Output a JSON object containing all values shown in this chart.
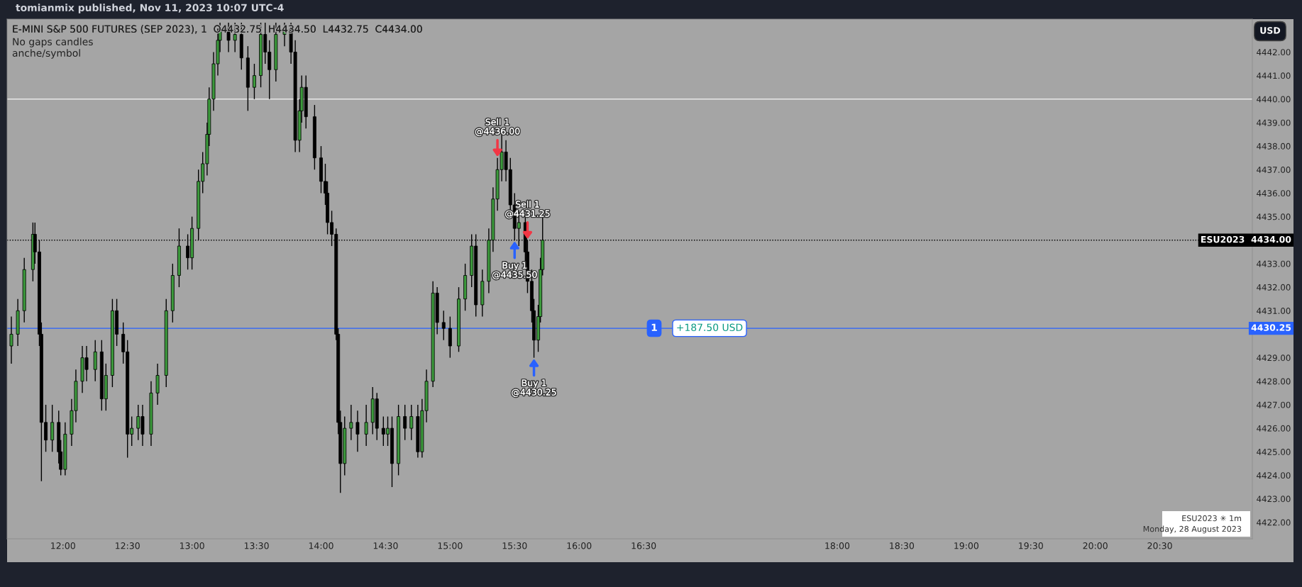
{
  "chart_data": {
    "type": "candlestick",
    "title": "E-MINI S&P 500 FUTURES (SEP 2023), 1  O4432.75  H4434.50  L4432.75  C4434.00",
    "subtitle": "tomianmix published, Nov 11, 2023 10:07 UTC-4",
    "x": [
      11.6,
      11.65,
      11.7,
      11.767,
      11.783,
      11.817,
      11.833,
      11.867,
      11.917,
      11.967,
      11.983,
      12.017,
      12.067,
      12.1,
      12.15,
      12.183,
      12.25,
      12.3,
      12.333,
      12.383,
      12.417,
      12.467,
      12.5,
      12.533,
      12.583,
      12.617,
      12.683,
      12.733,
      12.8,
      12.85,
      12.9,
      12.967,
      13.0,
      13.05,
      13.083,
      13.117,
      13.133,
      13.167,
      13.2,
      13.217,
      13.283,
      13.333,
      13.383,
      13.433,
      13.483,
      13.533,
      13.567,
      13.6,
      13.65,
      13.717,
      13.767,
      13.8,
      13.833,
      13.85,
      13.883,
      13.95,
      14.0,
      14.033,
      14.05,
      14.083,
      14.117,
      14.133,
      14.15,
      14.183,
      14.233,
      14.283,
      14.35,
      14.4,
      14.433,
      14.483,
      14.517,
      14.55,
      14.6,
      14.65,
      14.7,
      14.75,
      14.783,
      14.817,
      14.867,
      14.9,
      14.95,
      15.0,
      15.067,
      15.117,
      15.167,
      15.2,
      15.25,
      15.3,
      15.333,
      15.367,
      15.4,
      15.433,
      15.467,
      15.5,
      15.533,
      15.583,
      15.6,
      15.633,
      15.65,
      15.683,
      15.7,
      15.717
    ],
    "ohlc": [
      [
        4429.5,
        4430.75,
        4428.75,
        4430.0
      ],
      [
        4430.0,
        4431.5,
        4429.5,
        4431.0
      ],
      [
        4431.0,
        4433.25,
        4430.5,
        4432.75
      ],
      [
        4432.75,
        4434.75,
        4432.25,
        4434.25
      ],
      [
        4434.25,
        4434.75,
        4433.0,
        4433.5
      ],
      [
        4433.5,
        4434.0,
        4429.5,
        4430.0
      ],
      [
        4430.0,
        4430.5,
        4423.75,
        4426.25
      ],
      [
        4426.25,
        4427.0,
        4425.0,
        4425.5
      ],
      [
        4425.5,
        4427.0,
        4425.0,
        4426.25
      ],
      [
        4426.25,
        4426.75,
        4424.5,
        4425.0
      ],
      [
        4425.0,
        4425.5,
        4424.0,
        4424.25
      ],
      [
        4424.25,
        4426.25,
        4424.0,
        4425.75
      ],
      [
        4425.75,
        4427.25,
        4425.25,
        4426.75
      ],
      [
        4426.75,
        4428.5,
        4426.25,
        4428.0
      ],
      [
        4428.0,
        4429.5,
        4427.5,
        4429.0
      ],
      [
        4429.0,
        4429.5,
        4428.0,
        4428.5
      ],
      [
        4428.5,
        4429.75,
        4428.0,
        4429.25
      ],
      [
        4429.25,
        4429.75,
        4426.75,
        4427.25
      ],
      [
        4427.25,
        4428.75,
        4426.75,
        4428.25
      ],
      [
        4428.25,
        4431.5,
        4427.75,
        4431.0
      ],
      [
        4431.0,
        4431.5,
        4429.5,
        4430.0
      ],
      [
        4430.0,
        4430.5,
        4428.75,
        4429.25
      ],
      [
        4429.25,
        4429.75,
        4424.75,
        4425.75
      ],
      [
        4425.75,
        4426.5,
        4425.25,
        4426.0
      ],
      [
        4426.0,
        4427.0,
        4425.5,
        4426.5
      ],
      [
        4426.5,
        4427.0,
        4425.25,
        4425.75
      ],
      [
        4425.75,
        4428.0,
        4425.25,
        4427.5
      ],
      [
        4427.5,
        4428.75,
        4427.0,
        4428.25
      ],
      [
        4428.25,
        4431.5,
        4427.75,
        4431.0
      ],
      [
        4431.0,
        4433.0,
        4430.5,
        4432.5
      ],
      [
        4432.5,
        4434.5,
        4432.0,
        4433.75
      ],
      [
        4433.75,
        4434.25,
        4432.75,
        4433.25
      ],
      [
        4433.25,
        4435.0,
        4432.75,
        4434.5
      ],
      [
        4434.5,
        4437.0,
        4434.0,
        4436.5
      ],
      [
        4436.5,
        4437.75,
        4436.0,
        4437.25
      ],
      [
        4437.25,
        4439.0,
        4436.75,
        4438.5
      ],
      [
        4438.5,
        4440.5,
        4438.0,
        4440.0
      ],
      [
        4440.0,
        4442.0,
        4439.5,
        4441.5
      ],
      [
        4441.5,
        4443.0,
        4441.0,
        4442.5
      ],
      [
        4442.5,
        4443.25,
        4442.0,
        4443.0
      ],
      [
        4443.0,
        4443.25,
        4442.0,
        4442.5
      ],
      [
        4442.5,
        4443.25,
        4442.0,
        4442.75
      ],
      [
        4442.75,
        4443.25,
        4441.25,
        4441.75
      ],
      [
        4441.75,
        4442.25,
        4439.5,
        4440.5
      ],
      [
        4440.5,
        4441.5,
        4440.0,
        4441.0
      ],
      [
        4441.0,
        4443.25,
        4440.5,
        4442.75
      ],
      [
        4442.75,
        4443.25,
        4441.5,
        4442.0
      ],
      [
        4442.0,
        4442.5,
        4440.0,
        4441.25
      ],
      [
        4441.25,
        4443.25,
        4440.75,
        4442.75
      ],
      [
        4442.75,
        4443.25,
        4442.25,
        4443.0
      ],
      [
        4443.0,
        4443.25,
        4441.5,
        4442.0
      ],
      [
        4442.0,
        4442.5,
        4437.75,
        4438.25
      ],
      [
        4438.25,
        4440.0,
        4437.75,
        4439.5
      ],
      [
        4439.5,
        4441.0,
        4439.0,
        4440.5
      ],
      [
        4440.5,
        4441.0,
        4438.75,
        4439.25
      ],
      [
        4439.25,
        4439.75,
        4437.0,
        4437.5
      ],
      [
        4437.5,
        4438.0,
        4436.0,
        4436.5
      ],
      [
        4436.5,
        4437.25,
        4435.5,
        4436.0
      ],
      [
        4436.0,
        4436.5,
        4434.25,
        4434.75
      ],
      [
        4434.75,
        4435.25,
        4433.75,
        4434.25
      ],
      [
        4434.25,
        4434.5,
        4429.75,
        4430.0
      ],
      [
        4430.0,
        4430.25,
        4425.75,
        4426.25
      ],
      [
        4426.25,
        4426.75,
        4423.25,
        4424.5
      ],
      [
        4424.5,
        4426.5,
        4424.0,
        4426.0
      ],
      [
        4426.0,
        4427.0,
        4425.5,
        4426.25
      ],
      [
        4426.25,
        4426.75,
        4425.0,
        4425.75
      ],
      [
        4425.75,
        4427.0,
        4425.25,
        4426.25
      ],
      [
        4426.25,
        4427.75,
        4425.75,
        4427.25
      ],
      [
        4427.25,
        4427.5,
        4425.5,
        4426.0
      ],
      [
        4426.0,
        4426.5,
        4425.25,
        4425.75
      ],
      [
        4425.75,
        4426.5,
        4425.25,
        4426.0
      ],
      [
        4426.0,
        4426.5,
        4423.5,
        4424.5
      ],
      [
        4424.5,
        4427.0,
        4424.0,
        4426.5
      ],
      [
        4426.5,
        4427.0,
        4425.5,
        4426.0
      ],
      [
        4426.0,
        4427.0,
        4425.5,
        4426.5
      ],
      [
        4426.5,
        4427.0,
        4424.75,
        4425.0
      ],
      [
        4425.0,
        4427.25,
        4424.75,
        4426.75
      ],
      [
        4426.75,
        4428.5,
        4426.25,
        4428.0
      ],
      [
        4428.0,
        4432.25,
        4427.75,
        4431.75
      ],
      [
        4431.75,
        4432.0,
        4430.0,
        4430.5
      ],
      [
        4430.5,
        4431.0,
        4429.75,
        4430.25
      ],
      [
        4430.25,
        4430.75,
        4429.0,
        4429.5
      ],
      [
        4429.5,
        4432.0,
        4429.25,
        4431.5
      ],
      [
        4431.5,
        4433.0,
        4431.0,
        4432.5
      ],
      [
        4432.5,
        4434.25,
        4432.0,
        4433.75
      ],
      [
        4433.75,
        4434.25,
        4430.75,
        4431.25
      ],
      [
        4431.25,
        4432.75,
        4430.75,
        4432.25
      ],
      [
        4432.25,
        4434.5,
        4431.75,
        4434.0
      ],
      [
        4434.0,
        4436.25,
        4433.5,
        4435.75
      ],
      [
        4435.75,
        4437.5,
        4435.25,
        4437.0
      ],
      [
        4437.0,
        4438.75,
        4436.5,
        4437.75
      ],
      [
        4437.75,
        4438.25,
        4436.5,
        4437.0
      ],
      [
        4437.0,
        4437.5,
        4435.0,
        4435.5
      ],
      [
        4435.5,
        4436.0,
        4434.0,
        4434.5
      ],
      [
        4434.5,
        4435.25,
        4433.75,
        4434.75
      ],
      [
        4434.75,
        4435.0,
        4433.0,
        4433.5
      ],
      [
        4433.5,
        4434.0,
        4431.75,
        4432.25
      ],
      [
        4432.25,
        4432.75,
        4430.5,
        4431.0
      ],
      [
        4431.0,
        4431.5,
        4429.0,
        4429.75
      ],
      [
        4429.75,
        4431.25,
        4429.25,
        4430.75
      ],
      [
        4430.75,
        4433.25,
        4430.5,
        4432.75
      ],
      [
        4432.75,
        4435.0,
        4432.5,
        4434.0
      ]
    ],
    "xlim": [
      11.567,
      21.217
    ],
    "xticks": [
      {
        "value": 12,
        "label": "12:00"
      },
      {
        "value": 12.5,
        "label": "12:30"
      },
      {
        "value": 13,
        "label": "13:00"
      },
      {
        "value": 13.5,
        "label": "13:30"
      },
      {
        "value": 14,
        "label": "14:00"
      },
      {
        "value": 14.5,
        "label": "14:30"
      },
      {
        "value": 15,
        "label": "15:00"
      },
      {
        "value": 15.5,
        "label": "15:30"
      },
      {
        "value": 16,
        "label": "16:00"
      },
      {
        "value": 16.5,
        "label": "16:30"
      },
      {
        "value": 18,
        "label": "18:00"
      },
      {
        "value": 18.5,
        "label": "18:30"
      },
      {
        "value": 19,
        "label": "19:00"
      },
      {
        "value": 19.5,
        "label": "19:30"
      },
      {
        "value": 20,
        "label": "20:00"
      },
      {
        "value": 20.5,
        "label": "20:30"
      }
    ],
    "ylim": [
      4421.3,
      4443.4
    ],
    "yticks": [
      {
        "value": 4422,
        "label": "4422.00"
      },
      {
        "value": 4423,
        "label": "4423.00"
      },
      {
        "value": 4424,
        "label": "4424.00"
      },
      {
        "value": 4425,
        "label": "4425.00"
      },
      {
        "value": 4426,
        "label": "4426.00"
      },
      {
        "value": 4427,
        "label": "4427.00"
      },
      {
        "value": 4428,
        "label": "4428.00"
      },
      {
        "value": 4429,
        "label": "4429.00"
      },
      {
        "value": 4431,
        "label": "4431.00"
      },
      {
        "value": 4432,
        "label": "4432.00"
      },
      {
        "value": 4433,
        "label": "4433.00"
      },
      {
        "value": 4435,
        "label": "4435.00"
      },
      {
        "value": 4436,
        "label": "4436.00"
      },
      {
        "value": 4437,
        "label": "4437.00"
      },
      {
        "value": 4438,
        "label": "4438.00"
      },
      {
        "value": 4439,
        "label": "4439.00"
      },
      {
        "value": 4440,
        "label": "4440.00"
      },
      {
        "value": 4441,
        "label": "4441.00"
      },
      {
        "value": 4442,
        "label": "4442.00"
      }
    ],
    "ref_lines": [
      {
        "axis": "y",
        "value": 4440,
        "color": "#e8e8e8",
        "line_style": "solid"
      },
      {
        "axis": "y",
        "value": 4434,
        "label": "ESU2023  4434.00",
        "color": "#000000",
        "line_style": "dotted"
      },
      {
        "axis": "y",
        "value": 4430.25,
        "label": "4430.25",
        "color": "#2962ff",
        "line_style": "solid"
      }
    ],
    "annotations": [
      {
        "text": "Sell 1\n@4436.00",
        "x": 15.367,
        "y": 4437.5
      },
      {
        "text": "Buy 1\n@4435.50",
        "x": 15.5,
        "y": 4434.0
      },
      {
        "text": "Sell 1\n@4431.25",
        "x": 15.6,
        "y": 4434.0
      },
      {
        "text": "Buy 1\n@4430.25",
        "x": 15.65,
        "y": 4429.0
      },
      "No gaps candles",
      "anche/symbol",
      "USD",
      "1",
      "+187.50 USD",
      "ESU2023 ✳ 1m",
      "Monday, 28 August 2023"
    ],
    "grid": false
  }
}
